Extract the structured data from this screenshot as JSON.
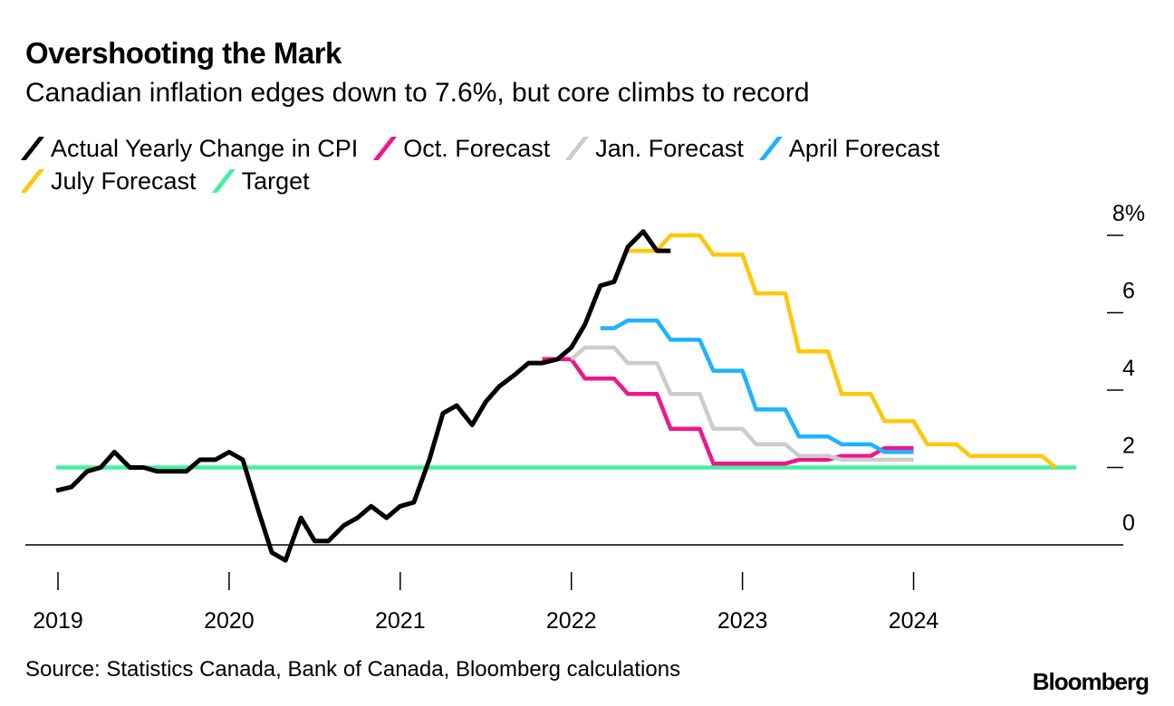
{
  "chart_data": {
    "type": "line",
    "title": "Overshooting the Mark",
    "subtitle": "Canadian inflation edges down to 7.6%, but core climbs to record",
    "source": "Source: Statistics Canada, Bank of Canada, Bloomberg calculations",
    "brand": "Bloomberg",
    "xlim": [
      2019.0,
      2024.95
    ],
    "ylim": [
      -0.7,
      8.6
    ],
    "x_ticks": [
      2019,
      2020,
      2021,
      2022,
      2023,
      2024
    ],
    "x_tick_labels": [
      "2019",
      "2020",
      "2021",
      "2022",
      "2023",
      "2024"
    ],
    "y_ticks": [
      0,
      2,
      4,
      6,
      8
    ],
    "y_tick_labels": [
      "0",
      "2",
      "4",
      "6",
      "8%"
    ],
    "series": [
      {
        "name": "Actual Yearly Change in CPI",
        "color": "#000000",
        "x": [
          2018.99,
          2019.08,
          2019.17,
          2019.25,
          2019.33,
          2019.42,
          2019.5,
          2019.58,
          2019.67,
          2019.75,
          2019.83,
          2019.92,
          2020.0,
          2020.08,
          2020.17,
          2020.25,
          2020.33,
          2020.42,
          2020.5,
          2020.58,
          2020.67,
          2020.75,
          2020.83,
          2020.92,
          2021.0,
          2021.08,
          2021.17,
          2021.25,
          2021.33,
          2021.42,
          2021.5,
          2021.58,
          2021.67,
          2021.75,
          2021.83,
          2021.92,
          2022.0,
          2022.08,
          2022.17,
          2022.25,
          2022.33,
          2022.42,
          2022.5,
          2022.58
        ],
        "y": [
          1.4,
          1.5,
          1.9,
          2.0,
          2.4,
          2.0,
          2.0,
          1.9,
          1.9,
          1.9,
          2.2,
          2.2,
          2.4,
          2.2,
          0.9,
          -0.2,
          -0.4,
          0.7,
          0.1,
          0.1,
          0.5,
          0.7,
          1.0,
          0.7,
          1.0,
          1.1,
          2.2,
          3.4,
          3.6,
          3.1,
          3.7,
          4.1,
          4.4,
          4.7,
          4.7,
          4.8,
          5.1,
          5.7,
          6.7,
          6.8,
          7.7,
          8.1,
          7.6,
          7.6
        ]
      },
      {
        "name": "Oct. Forecast",
        "color": "#f0168c",
        "x": [
          2021.83,
          2022.0,
          2022.08,
          2022.25,
          2022.33,
          2022.5,
          2022.58,
          2022.75,
          2022.83,
          2023.0,
          2023.08,
          2023.25,
          2023.33,
          2023.5,
          2023.58,
          2023.75,
          2023.83,
          2024.0
        ],
        "y": [
          4.8,
          4.8,
          4.3,
          4.3,
          3.9,
          3.9,
          3.0,
          3.0,
          2.1,
          2.1,
          2.1,
          2.1,
          2.2,
          2.2,
          2.3,
          2.3,
          2.5,
          2.5
        ]
      },
      {
        "name": "Jan. Forecast",
        "color": "#cccccc",
        "x": [
          2022.0,
          2022.08,
          2022.25,
          2022.33,
          2022.5,
          2022.58,
          2022.75,
          2022.83,
          2023.0,
          2023.08,
          2023.25,
          2023.33,
          2023.5,
          2023.58,
          2023.75,
          2023.83,
          2024.0
        ],
        "y": [
          4.8,
          5.1,
          5.1,
          4.7,
          4.7,
          3.9,
          3.9,
          3.0,
          3.0,
          2.6,
          2.6,
          2.3,
          2.3,
          2.2,
          2.2,
          2.2,
          2.2
        ]
      },
      {
        "name": "April Forecast",
        "color": "#1fb2ff",
        "x": [
          2022.17,
          2022.25,
          2022.33,
          2022.5,
          2022.58,
          2022.75,
          2022.83,
          2023.0,
          2023.08,
          2023.25,
          2023.33,
          2023.5,
          2023.58,
          2023.75,
          2023.83,
          2024.0
        ],
        "y": [
          5.6,
          5.6,
          5.8,
          5.8,
          5.3,
          5.3,
          4.5,
          4.5,
          3.5,
          3.5,
          2.8,
          2.8,
          2.6,
          2.6,
          2.4,
          2.4
        ]
      },
      {
        "name": "July Forecast",
        "color": "#ffc708",
        "x": [
          2022.33,
          2022.5,
          2022.58,
          2022.75,
          2022.83,
          2023.0,
          2023.08,
          2023.25,
          2023.33,
          2023.5,
          2023.58,
          2023.75,
          2023.83,
          2024.0,
          2024.08,
          2024.25,
          2024.33,
          2024.5,
          2024.58,
          2024.75,
          2024.83
        ],
        "y": [
          7.6,
          7.6,
          8.0,
          8.0,
          7.5,
          7.5,
          6.5,
          6.5,
          5.0,
          5.0,
          3.9,
          3.9,
          3.2,
          3.2,
          2.6,
          2.6,
          2.3,
          2.3,
          2.3,
          2.3,
          2.0
        ]
      },
      {
        "name": "Target",
        "color": "#42f0a0",
        "x": [
          2018.99,
          2024.95
        ],
        "y": [
          2.0,
          2.0
        ]
      }
    ]
  }
}
